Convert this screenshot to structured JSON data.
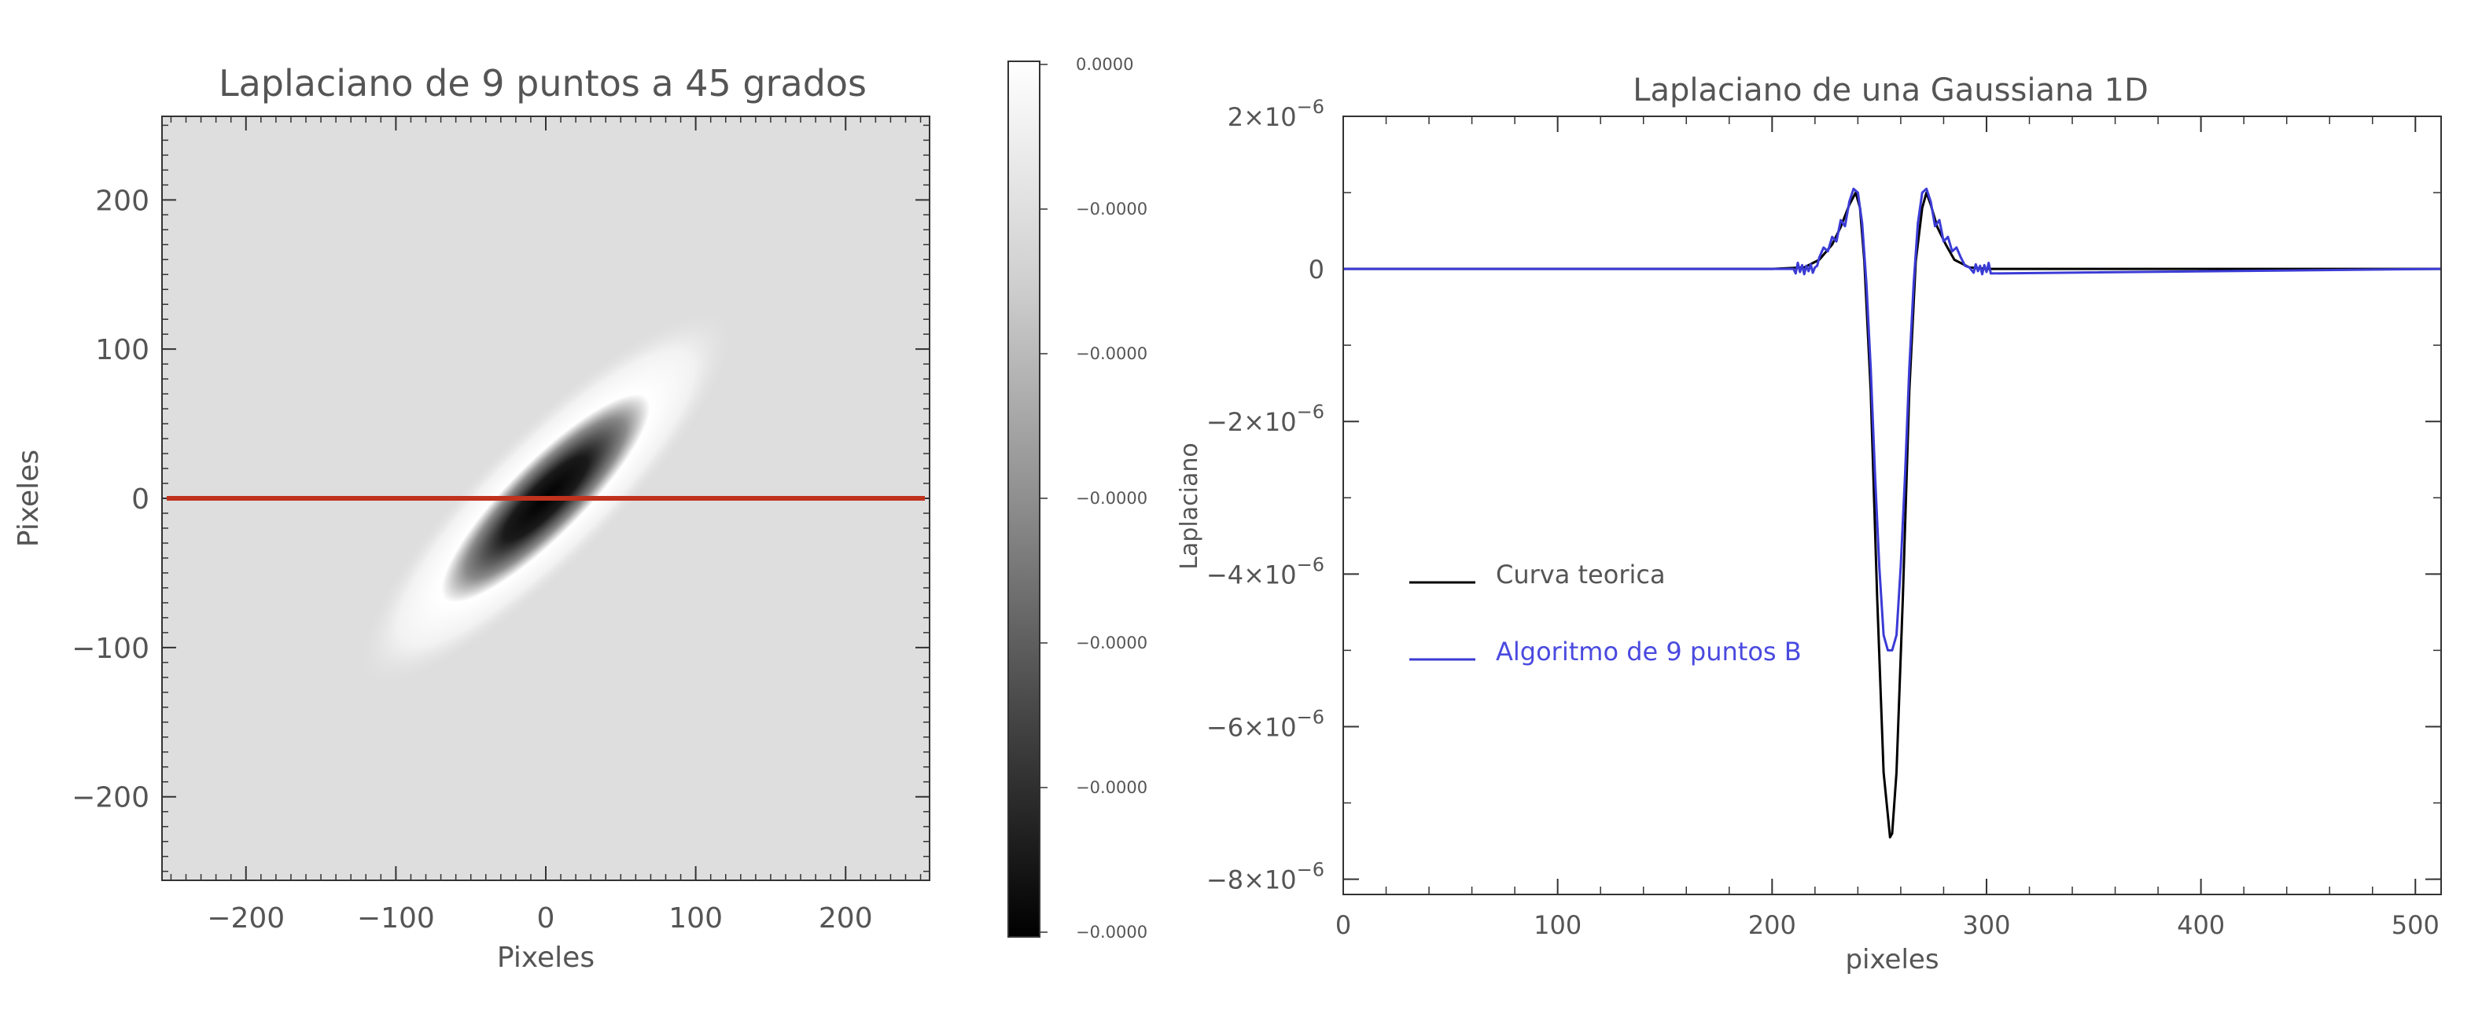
{
  "chart_data": [
    {
      "type": "heatmap",
      "title": "Laplaciano de 9 puntos a 45 grados",
      "xlabel": "Pixeles",
      "ylabel": "Pixeles",
      "xlim": [
        -256,
        256
      ],
      "ylim": [
        -256,
        256
      ],
      "x_ticks": [
        "−200",
        "−100",
        "0",
        "100",
        "200"
      ],
      "x_tick_values": [
        -200,
        -100,
        0,
        100,
        200
      ],
      "y_ticks": [
        "200",
        "100",
        "0",
        "−100",
        "−200"
      ],
      "y_tick_values": [
        200,
        100,
        0,
        -100,
        -200
      ],
      "colormap": "grayscale",
      "background_value_color": "#dedede",
      "feature": {
        "shape": "elongated elliptical gaussian laplacian",
        "center": [
          0,
          0
        ],
        "orientation_degrees": 45,
        "core_color": "#000000",
        "halo_color": "#ffffff"
      },
      "overlay_line": {
        "y": 0,
        "x_from": -256,
        "x_to": 256,
        "color": "#c0321c"
      },
      "colorbar": {
        "labels": [
          "0.0000",
          "−0.0000",
          "−0.0000",
          "−0.0000",
          "−0.0000",
          "−0.0000",
          "−0.0000"
        ],
        "top_color": "#ffffff",
        "bottom_color": "#000000"
      }
    },
    {
      "type": "line",
      "title": "Laplaciano de una Gaussiana 1D",
      "xlabel": "pixeles",
      "ylabel": "Laplaciano",
      "xlim": [
        0,
        512
      ],
      "ylim": [
        -8.2e-06,
        2e-06
      ],
      "grid": false,
      "legend_position": "left-middle",
      "x_ticks": [
        "0",
        "100",
        "200",
        "300",
        "400",
        "500"
      ],
      "x_tick_values": [
        0,
        100,
        200,
        300,
        400,
        500
      ],
      "y_ticks": [
        {
          "value": 2e-06,
          "mantissa": "2×10",
          "exp": "−6"
        },
        {
          "value": 0,
          "mantissa": "0",
          "exp": ""
        },
        {
          "value": -2e-06,
          "mantissa": "−2×10",
          "exp": "−6"
        },
        {
          "value": -4e-06,
          "mantissa": "−4×10",
          "exp": "−6"
        },
        {
          "value": -6e-06,
          "mantissa": "−6×10",
          "exp": "−6"
        },
        {
          "value": -8e-06,
          "mantissa": "−8×10",
          "exp": "−6"
        }
      ],
      "series": [
        {
          "name": "Curva teorica",
          "color": "#000000",
          "x": [
            0,
            200,
            215,
            222,
            228,
            232,
            236,
            239,
            241,
            243,
            246,
            249,
            252,
            255,
            256,
            258,
            261,
            264,
            267,
            270,
            272,
            274,
            277,
            281,
            285,
            292,
            300,
            512
          ],
          "y": [
            0,
            0,
            2e-08,
            1.2e-07,
            3.2e-07,
            5.5e-07,
            8.4e-07,
            1e-06,
            8e-07,
            1e-07,
            -1.6e-06,
            -4.3e-06,
            -6.6e-06,
            -7.45e-06,
            -7.4e-06,
            -6.6e-06,
            -4.3e-06,
            -1.6e-06,
            1e-07,
            8e-07,
            1e-06,
            8.4e-07,
            5.5e-07,
            3.2e-07,
            1.2e-07,
            2e-08,
            0,
            0
          ]
        },
        {
          "name": "Algoritmo de 9 puntos B",
          "color": "#3b3bd6",
          "x": [
            0,
            210,
            211,
            212,
            213,
            214,
            215,
            216,
            217,
            218,
            219,
            220,
            221,
            222,
            224,
            226,
            228,
            230,
            232,
            234,
            236,
            238,
            240,
            242,
            244,
            246,
            248,
            250,
            252,
            254,
            256,
            258,
            260,
            262,
            264,
            266,
            268,
            270,
            272,
            274,
            276,
            278,
            280,
            282,
            284,
            286,
            288,
            290,
            292,
            294,
            295,
            296,
            297,
            298,
            299,
            300,
            301,
            302,
            512
          ],
          "y": [
            0,
            0,
            -6e-08,
            8e-08,
            -4e-08,
            5e-08,
            -7e-08,
            4e-08,
            -3e-08,
            6e-08,
            -5e-08,
            2e-08,
            4e-08,
            1.5e-07,
            2.8e-07,
            2.3e-07,
            4.2e-07,
            3.6e-07,
            6.4e-07,
            5.6e-07,
            8.8e-07,
            1.05e-06,
            1e-06,
            6e-07,
            -2e-07,
            -1.3e-06,
            -2.7e-06,
            -3.9e-06,
            -4.8e-06,
            -5e-06,
            -5e-06,
            -4.8e-06,
            -3.9e-06,
            -2.7e-06,
            -1.3e-06,
            -2e-07,
            6e-07,
            1e-06,
            1.05e-06,
            8.8e-07,
            5.6e-07,
            6.4e-07,
            3.6e-07,
            4.2e-07,
            2.3e-07,
            2.8e-07,
            1.5e-07,
            4e-08,
            2e-08,
            -5e-08,
            6e-08,
            -3e-08,
            4e-08,
            -7e-08,
            5e-08,
            -4e-08,
            8e-08,
            -6e-08,
            0
          ]
        }
      ]
    }
  ]
}
